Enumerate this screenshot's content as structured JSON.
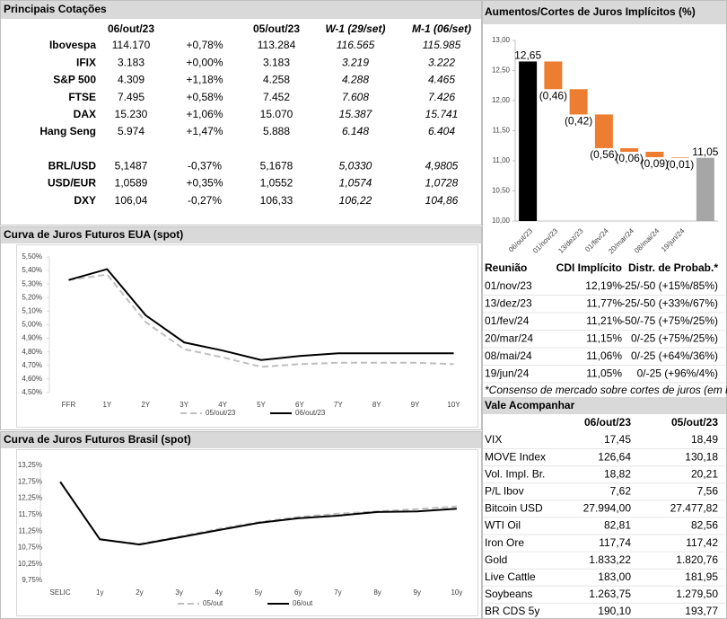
{
  "quotes": {
    "title": "Principais Cotações",
    "headers": [
      "06/out/23",
      "05/out/23",
      "W-1 (29/set)",
      "M-1 (06/set)"
    ],
    "row_groups": [
      [
        [
          "Ibovespa",
          "114.170",
          "+0,78%",
          "113.284",
          "116.565",
          "115.985"
        ],
        [
          "IFIX",
          "3.183",
          "+0,00%",
          "3.183",
          "3.219",
          "3.222"
        ],
        [
          "S&P 500",
          "4.309",
          "+1,18%",
          "4.258",
          "4.288",
          "4.465"
        ],
        [
          "FTSE",
          "7.495",
          "+0,58%",
          "7.452",
          "7.608",
          "7.426"
        ],
        [
          "DAX",
          "15.230",
          "+1,06%",
          "15.070",
          "15.387",
          "15.741"
        ],
        [
          "Hang Seng",
          "5.974",
          "+1,47%",
          "5.888",
          "6.148",
          "6.404"
        ]
      ],
      [
        [
          "BRL/USD",
          "5,1487",
          "-0,37%",
          "5,1678",
          "5,0330",
          "4,9805"
        ],
        [
          "USD/EUR",
          "1,0589",
          "+0,35%",
          "1,0552",
          "1,0574",
          "1,0728"
        ],
        [
          "DXY",
          "106,04",
          "-0,27%",
          "106,33",
          "106,22",
          "104,86"
        ]
      ]
    ]
  },
  "chart_data": [
    {
      "type": "waterfall",
      "title": "Aumentos/Cortes de Juros Implícitos (%)",
      "categories": [
        "06/out/23",
        "01/nov/23",
        "13/dez/23",
        "01/fev/24",
        "20/mar/24",
        "08/mai/24",
        "19/jun/24",
        null
      ],
      "values": [
        12.65,
        -0.46,
        -0.42,
        -0.56,
        -0.06,
        -0.09,
        -0.01,
        11.05
      ],
      "value_labels": [
        "12,65",
        "(0,46)",
        "(0,42)",
        "(0,56)",
        "(0,06)",
        "(0,09)",
        "(0,01)",
        "11,05"
      ],
      "colors": [
        "#000000",
        "#ed7d31",
        "#ed7d31",
        "#ed7d31",
        "#ed7d31",
        "#ed7d31",
        "#ed7d31",
        "#a6a6a6"
      ],
      "ylim": [
        10,
        13
      ],
      "yticks": [
        {
          "value": 10,
          "label": "10,00"
        },
        {
          "value": 10.5,
          "label": "10,50"
        },
        {
          "value": 11,
          "label": "11,00"
        },
        {
          "value": 11.5,
          "label": "11,50"
        },
        {
          "value": 12,
          "label": "12,00"
        },
        {
          "value": 12.5,
          "label": "12,50"
        },
        {
          "value": 13,
          "label": "13,00"
        }
      ]
    },
    {
      "type": "line",
      "title": "Curva de Juros Futuros EUA (spot)",
      "categories": [
        "FFR",
        "1Y",
        "2Y",
        "3Y",
        "4Y",
        "5Y",
        "6Y",
        "7Y",
        "8Y",
        "9Y",
        "10Y"
      ],
      "series": [
        {
          "name": "05/out/23",
          "color": "#bfbfbf",
          "dash": true,
          "values": [
            5.33,
            5.37,
            5.02,
            4.82,
            4.76,
            4.69,
            4.71,
            4.72,
            4.72,
            4.72,
            4.71
          ]
        },
        {
          "name": "06/out/23",
          "color": "#000000",
          "dash": false,
          "values": [
            5.33,
            5.41,
            5.07,
            4.87,
            4.81,
            4.74,
            4.77,
            4.79,
            4.79,
            4.79,
            4.79
          ]
        }
      ],
      "ylim": [
        4.5,
        5.5
      ],
      "yticks": [
        {
          "value": 4.5,
          "label": "4,50%"
        },
        {
          "value": 4.6,
          "label": "4,60%"
        },
        {
          "value": 4.7,
          "label": "4,70%"
        },
        {
          "value": 4.8,
          "label": "4,80%"
        },
        {
          "value": 4.9,
          "label": "4,90%"
        },
        {
          "value": 5.0,
          "label": "5,00%"
        },
        {
          "value": 5.1,
          "label": "5,10%"
        },
        {
          "value": 5.2,
          "label": "5,20%"
        },
        {
          "value": 5.3,
          "label": "5,30%"
        },
        {
          "value": 5.4,
          "label": "5,40%"
        },
        {
          "value": 5.5,
          "label": "5,50%"
        }
      ],
      "legend": "bottom"
    },
    {
      "type": "line",
      "title": "Curva de Juros Futuros Brasil (spot)",
      "categories": [
        "SELIC",
        "1y",
        "2y",
        "3y",
        "4y",
        "5y",
        "6y",
        "7y",
        "8y",
        "9y",
        "10y"
      ],
      "series": [
        {
          "name": "05/out",
          "color": "#bfbfbf",
          "dash": true,
          "values": [
            12.75,
            11.0,
            10.86,
            11.08,
            11.32,
            11.52,
            11.68,
            11.78,
            11.85,
            11.92,
            12.0
          ]
        },
        {
          "name": "06/out",
          "color": "#000000",
          "dash": false,
          "values": [
            12.75,
            11.0,
            10.84,
            11.06,
            11.28,
            11.5,
            11.64,
            11.72,
            11.83,
            11.85,
            11.93
          ]
        }
      ],
      "ylim": [
        9.75,
        13.25
      ],
      "yticks": [
        {
          "value": 9.75,
          "label": "9,75%"
        },
        {
          "value": 10.25,
          "label": "10,25%"
        },
        {
          "value": 10.75,
          "label": "10,75%"
        },
        {
          "value": 11.25,
          "label": "11,25%"
        },
        {
          "value": 11.75,
          "label": "11,75%"
        },
        {
          "value": 12.25,
          "label": "12,25%"
        },
        {
          "value": 12.75,
          "label": "12,75%"
        },
        {
          "value": 13.25,
          "label": "13,25%"
        }
      ],
      "legend": "bottom"
    }
  ],
  "meetings": {
    "headers": [
      "Reunião",
      "CDI Implícito",
      "Distr. de Probab.*"
    ],
    "rows": [
      [
        "01/nov/23",
        "12,19%",
        "-25/-50 (+15%/85%)"
      ],
      [
        "13/dez/23",
        "11,77%",
        "-25/-50 (+33%/67%)"
      ],
      [
        "01/fev/24",
        "11,21%",
        "-50/-75 (+75%/25%)"
      ],
      [
        "20/mar/24",
        "11,15%",
        "0/-25 (+75%/25%)"
      ],
      [
        "08/mai/24",
        "11,06%",
        "0/-25 (+64%/36%)"
      ],
      [
        "19/jun/24",
        "11,05%",
        "0/-25 (+96%/4%)"
      ]
    ],
    "footnote": "*Consenso de mercado sobre cortes de juros (em bps) e probabilidades implícitas"
  },
  "watch": {
    "title": "Vale Acompanhar",
    "headers": [
      "06/out/23",
      "05/out/23"
    ],
    "rows": [
      [
        "VIX",
        "17,45",
        "18,49"
      ],
      [
        "MOVE Index",
        "126,64",
        "130,18"
      ],
      [
        "Vol. Impl. Br.",
        "18,82",
        "20,21"
      ],
      [
        "P/L Ibov",
        "7,62",
        "7,56"
      ],
      [
        "Bitcoin USD",
        "27.994,00",
        "27.477,82"
      ],
      [
        "WTI Oil",
        "82,81",
        "82,56"
      ],
      [
        "Iron Ore",
        "117,74",
        "117,42"
      ],
      [
        "Gold",
        "1.833,22",
        "1.820,76"
      ],
      [
        "Live Cattle",
        "183,00",
        "181,95"
      ],
      [
        "Soybeans",
        "1.263,75",
        "1.279,50"
      ],
      [
        "BR CDS 5y",
        "190,10",
        "193,77"
      ]
    ]
  }
}
